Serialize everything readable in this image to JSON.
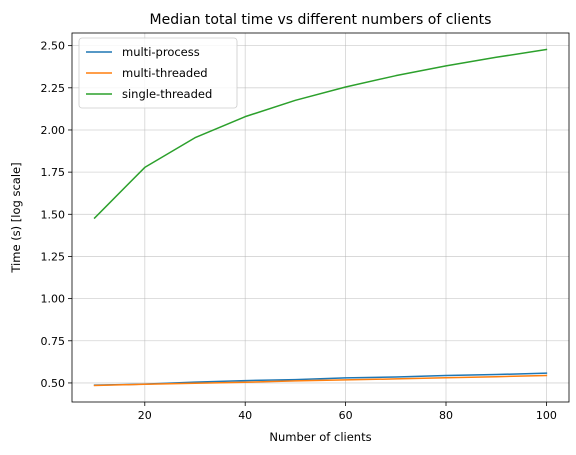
{
  "chart_data": {
    "type": "line",
    "title": "Median total time vs different numbers of clients",
    "xlabel": "Number of clients",
    "ylabel": "Time (s) [log scale]",
    "xlim": [
      5.5,
      104.5
    ],
    "ylim": [
      0.387,
      2.575
    ],
    "xticks": [
      20,
      40,
      60,
      80,
      100
    ],
    "yticks": [
      0.5,
      0.75,
      1.0,
      1.25,
      1.5,
      1.75,
      2.0,
      2.25,
      2.5
    ],
    "ytick_labels": [
      "0.50",
      "0.75",
      "1.00",
      "1.25",
      "1.50",
      "1.75",
      "2.00",
      "2.25",
      "2.50"
    ],
    "grid": true,
    "legend_position": "top-left",
    "x": [
      10,
      20,
      30,
      40,
      50,
      60,
      70,
      80,
      90,
      100
    ],
    "series": [
      {
        "name": "multi-process",
        "color": "#1f77b4",
        "values": [
          0.487,
          0.493,
          0.505,
          0.514,
          0.52,
          0.53,
          0.535,
          0.544,
          0.55,
          0.558
        ]
      },
      {
        "name": "multi-threaded",
        "color": "#ff7f0e",
        "values": [
          0.485,
          0.492,
          0.498,
          0.504,
          0.512,
          0.518,
          0.524,
          0.531,
          0.537,
          0.544
        ]
      },
      {
        "name": "single-threaded",
        "color": "#2ca02c",
        "values": [
          1.478,
          1.778,
          1.954,
          2.079,
          2.176,
          2.255,
          2.322,
          2.38,
          2.431,
          2.477
        ]
      }
    ]
  }
}
